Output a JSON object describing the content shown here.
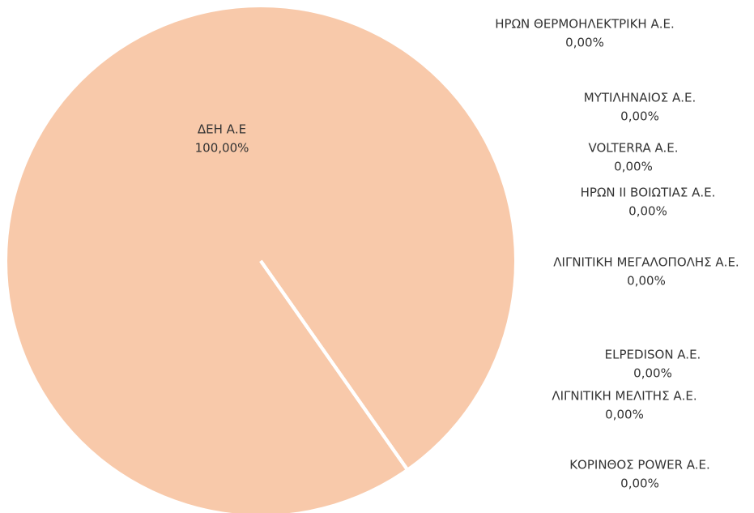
{
  "chart_data": {
    "type": "pie",
    "categories": [
      "ΔΕΗ Α.Ε",
      "ΗΡΩΝ ΘΕΡΜΟΗΛΕΚΤΡΙΚΗ Α.Ε.",
      "ΜΥΤΙΛΗΝΑΙΟΣ Α.Ε.",
      "VOLTERRA A.E.",
      "ΗΡΩΝ ΙΙ ΒΟΙΩΤΙΑΣ Α.Ε.",
      "ΛΙΓΝΙΤΙΚΗ ΜΕΓΑΛΟΠΟΛΗΣ Α.Ε.",
      "ELPEDISON A.E.",
      "ΛΙΓΝΙΤΙΚΗ ΜΕΛΙΤΗΣ Α.Ε.",
      "ΚΟΡΙΝΘΟΣ POWER A.E."
    ],
    "values": [
      100,
      0,
      0,
      0,
      0,
      0,
      0,
      0,
      0
    ],
    "value_labels": [
      "100,00%",
      "0,00%",
      "0,00%",
      "0,00%",
      "0,00%",
      "0,00%",
      "0,00%",
      "0,00%",
      "0,00%"
    ],
    "color": "#f8c9aa"
  }
}
